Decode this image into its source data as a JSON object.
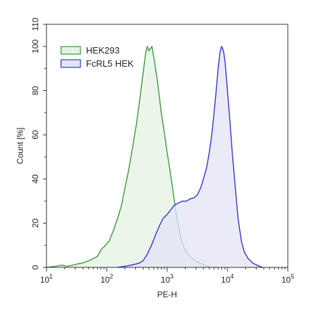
{
  "chart_data": {
    "type": "area",
    "xlabel": "PE-H",
    "ylabel": "Count [%]",
    "x_scale": "log",
    "xlim": [
      10,
      100000
    ],
    "ylim": [
      0,
      110
    ],
    "x_ticks": [
      {
        "value": 10,
        "base": "10",
        "exp": "1"
      },
      {
        "value": 100,
        "base": "10",
        "exp": "2"
      },
      {
        "value": 1000,
        "base": "10",
        "exp": "3"
      },
      {
        "value": 10000,
        "base": "10",
        "exp": "4"
      },
      {
        "value": 100000,
        "base": "10",
        "exp": "5"
      }
    ],
    "y_ticks": [
      {
        "value": 0,
        "label": "0"
      },
      {
        "value": 20,
        "label": "20"
      },
      {
        "value": 40,
        "label": "40"
      },
      {
        "value": 60,
        "label": "60"
      },
      {
        "value": 80,
        "label": "80"
      },
      {
        "value": 100,
        "label": "100"
      },
      {
        "value": 110,
        "label": "110"
      }
    ],
    "legend_position": "top-left",
    "series": [
      {
        "name": "HEK293",
        "color": "#3a9a3a",
        "fill": "#e4f1e2",
        "points": [
          [
            10,
            0
          ],
          [
            14,
            0.5
          ],
          [
            18,
            1
          ],
          [
            22,
            0.5
          ],
          [
            27,
            1
          ],
          [
            32,
            1.5
          ],
          [
            40,
            2
          ],
          [
            50,
            3
          ],
          [
            60,
            4
          ],
          [
            70,
            5
          ],
          [
            80,
            8
          ],
          [
            95,
            10
          ],
          [
            110,
            12
          ],
          [
            130,
            17
          ],
          [
            150,
            22
          ],
          [
            175,
            28
          ],
          [
            200,
            36
          ],
          [
            230,
            44
          ],
          [
            270,
            55
          ],
          [
            310,
            65
          ],
          [
            360,
            78
          ],
          [
            400,
            88
          ],
          [
            440,
            97
          ],
          [
            470,
            100
          ],
          [
            500,
            98
          ],
          [
            560,
            100
          ],
          [
            620,
            93
          ],
          [
            700,
            83
          ],
          [
            800,
            70
          ],
          [
            900,
            61
          ],
          [
            1000,
            52
          ],
          [
            1100,
            45
          ],
          [
            1200,
            38
          ],
          [
            1350,
            28
          ],
          [
            1500,
            20
          ],
          [
            1700,
            13
          ],
          [
            1900,
            9
          ],
          [
            2200,
            6
          ],
          [
            2600,
            4
          ],
          [
            3100,
            2.5
          ],
          [
            3800,
            1.5
          ],
          [
            4600,
            0.5
          ],
          [
            5500,
            0
          ]
        ]
      },
      {
        "name": "FcRL5 HEK",
        "color": "#3333cc",
        "fill": "#e4e4f6",
        "points": [
          [
            150,
            0
          ],
          [
            200,
            0.5
          ],
          [
            250,
            1
          ],
          [
            300,
            1.5
          ],
          [
            350,
            2
          ],
          [
            400,
            3
          ],
          [
            470,
            6
          ],
          [
            550,
            10
          ],
          [
            650,
            15
          ],
          [
            750,
            19
          ],
          [
            850,
            22
          ],
          [
            1000,
            24
          ],
          [
            1150,
            26
          ],
          [
            1300,
            28
          ],
          [
            1500,
            29
          ],
          [
            1800,
            30
          ],
          [
            2100,
            30
          ],
          [
            2400,
            31
          ],
          [
            2800,
            31.5
          ],
          [
            3200,
            33
          ],
          [
            3600,
            36
          ],
          [
            4000,
            40
          ],
          [
            4500,
            45
          ],
          [
            5000,
            52
          ],
          [
            5500,
            60
          ],
          [
            6000,
            70
          ],
          [
            6500,
            80
          ],
          [
            7000,
            90
          ],
          [
            7500,
            97
          ],
          [
            8000,
            100
          ],
          [
            8600,
            98
          ],
          [
            9200,
            92
          ],
          [
            10000,
            80
          ],
          [
            11000,
            66
          ],
          [
            12000,
            52
          ],
          [
            13500,
            36
          ],
          [
            15000,
            22
          ],
          [
            17000,
            12
          ],
          [
            19000,
            7
          ],
          [
            22000,
            4
          ],
          [
            26000,
            2
          ],
          [
            31000,
            1
          ],
          [
            38000,
            0
          ]
        ]
      }
    ]
  }
}
